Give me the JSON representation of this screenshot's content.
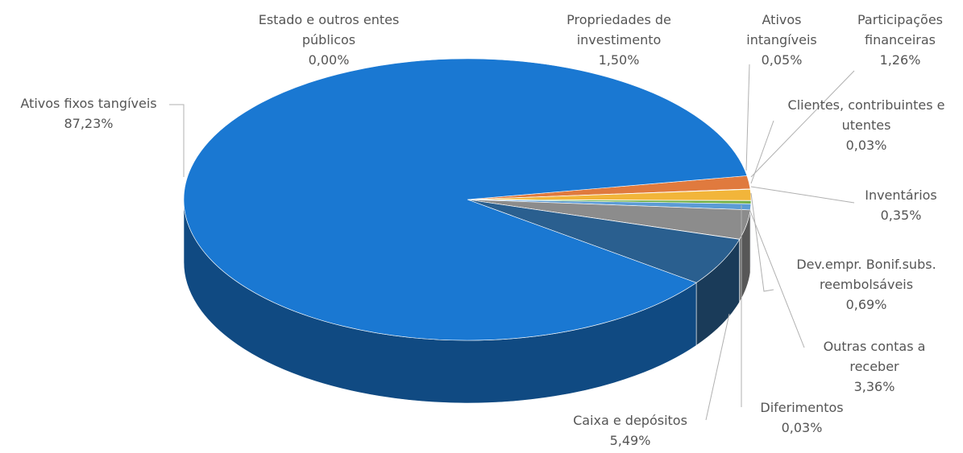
{
  "chart_data": {
    "type": "pie3d",
    "categories": [
      "Estado e outros entes públicos",
      "Propriedades de investimento",
      "Ativos intangíveis",
      "Participações financeiras",
      "Clientes, contribuintes e utentes",
      "Inventários",
      "Dev.empr. Bonif.subs. reembolsáveis",
      "Outras contas a receber",
      "Diferimentos",
      "Caixa e depósitos",
      "Ativos fixos tangíveis"
    ],
    "values": [
      0.0,
      1.5,
      0.05,
      1.26,
      0.03,
      0.35,
      0.69,
      3.36,
      0.03,
      5.49,
      87.23
    ],
    "value_labels": [
      "0,00%",
      "1,50%",
      "0,05%",
      "1,26%",
      "0,03%",
      "0,35%",
      "0,69%",
      "3,36%",
      "0,03%",
      "5,49%",
      "87,23%"
    ],
    "colors": [
      "#9e480e",
      "#e07a3e",
      "#997300",
      "#f2b53a",
      "#43682b",
      "#72b043",
      "#5b9bd5",
      "#8c8c8c",
      "#264478",
      "#2a5f8f",
      "#1a78d2"
    ]
  }
}
